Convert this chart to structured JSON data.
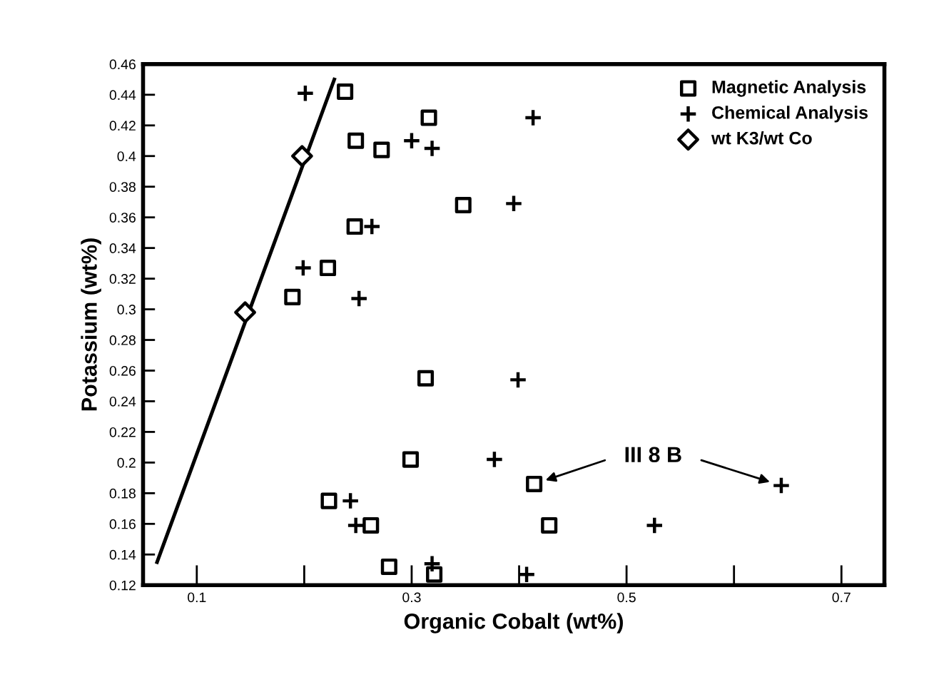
{
  "chart_data": {
    "type": "scatter",
    "xlabel": "Organic Cobalt (wt%)",
    "ylabel": "Potassium (wt%)",
    "xlim": [
      0.05,
      0.74
    ],
    "ylim": [
      0.12,
      0.46
    ],
    "xticks": [
      0.1,
      {
        "value": 0.2,
        "label": null
      },
      0.3,
      {
        "value": 0.4,
        "label": null
      },
      0.5,
      {
        "value": 0.6,
        "label": null
      },
      0.7
    ],
    "yticks": [
      0.12,
      0.14,
      0.16,
      0.18,
      0.2,
      0.22,
      0.24,
      0.26,
      0.28,
      0.3,
      0.32,
      0.34,
      0.36,
      0.38,
      0.4,
      0.42,
      0.44,
      0.46
    ],
    "grid": false,
    "legend": "top right",
    "annotations": [
      "III 8 B"
    ],
    "series": [
      {
        "name": "Magnetic Analysis",
        "marker": "square",
        "color": "#000000",
        "x": [
          0.238,
          0.316,
          0.248,
          0.272,
          0.348,
          0.247,
          0.222,
          0.189,
          0.313,
          0.299,
          0.223,
          0.262,
          0.279,
          0.321,
          0.414,
          0.428
        ],
        "values": [
          0.442,
          0.425,
          0.41,
          0.404,
          0.368,
          0.354,
          0.327,
          0.308,
          0.255,
          0.202,
          0.175,
          0.159,
          0.132,
          0.127,
          0.186,
          0.159
        ]
      },
      {
        "name": "Chemical Analysis",
        "marker": "cross",
        "color": "#000000",
        "x": [
          0.201,
          0.3,
          0.319,
          0.413,
          0.395,
          0.263,
          0.199,
          0.251,
          0.399,
          0.377,
          0.243,
          0.248,
          0.319,
          0.407,
          0.526,
          0.644
        ],
        "values": [
          0.441,
          0.41,
          0.405,
          0.425,
          0.369,
          0.354,
          0.327,
          0.307,
          0.254,
          0.202,
          0.175,
          0.159,
          0.134,
          0.127,
          0.159,
          0.185
        ]
      },
      {
        "name": "wt K3/wt Co",
        "marker": "diamond",
        "color": "#000000",
        "x": [
          0.198,
          0.145
        ],
        "values": [
          0.4,
          0.298
        ]
      },
      {
        "type": "line",
        "marker": "none",
        "line_style": "solid",
        "color": "#000000",
        "x": [
          0.063,
          0.228
        ],
        "values": [
          0.135,
          0.45
        ]
      }
    ]
  }
}
